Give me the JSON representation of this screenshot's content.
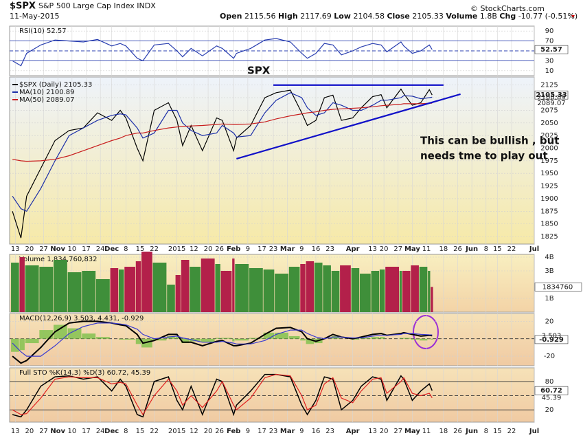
{
  "header": {
    "symbol": "$SPX",
    "name": "S&P 500 Large Cap Index INDX",
    "date": "11-May-2015",
    "source": "© StockCharts.com",
    "stats": [
      {
        "label": "Open",
        "value": "2115.56"
      },
      {
        "label": "High",
        "value": "2117.69"
      },
      {
        "label": "Low",
        "value": "2104.58"
      },
      {
        "label": "Close",
        "value": "2105.33"
      },
      {
        "label": "Volume",
        "value": "1.8B"
      },
      {
        "label": "Chg",
        "value": "-10.77 (-0.51%)"
      }
    ]
  },
  "chart_data": [
    {
      "type": "line",
      "title": "RSI(10) 52.57",
      "ylim": [
        0,
        100
      ],
      "yticks": [
        90,
        70,
        50,
        30,
        10
      ],
      "levels": [
        70,
        50,
        30
      ],
      "grid": true,
      "series": [
        {
          "color": "#2a3fb0",
          "last_label": true,
          "values": [
            30,
            20,
            45,
            62,
            72,
            70,
            68,
            73,
            60,
            65,
            60,
            35,
            30,
            62,
            65,
            50,
            38,
            55,
            40,
            60,
            55,
            35,
            45,
            55,
            72,
            75,
            68,
            45,
            35,
            45,
            65,
            62,
            42,
            50,
            58,
            65,
            62,
            48,
            68,
            60,
            45,
            50,
            62,
            52.57
          ]
        }
      ]
    },
    {
      "type": "line",
      "xlim": [
        -1,
        184
      ],
      "x": [
        0,
        3,
        5,
        10,
        15,
        20,
        25,
        30,
        35,
        38,
        40,
        44,
        46,
        50,
        55,
        58,
        60,
        63,
        67,
        72,
        74,
        78,
        79,
        84,
        89,
        93,
        98,
        102,
        104,
        107,
        110,
        113,
        116,
        120,
        123,
        127,
        130,
        132,
        137,
        138,
        141,
        144,
        147,
        148
      ],
      "xticks": [
        {
          "value": 1,
          "label": "13"
        },
        {
          "value": 6,
          "label": "20"
        },
        {
          "value": 11,
          "label": "27"
        },
        {
          "value": 16,
          "label": "Nov"
        },
        {
          "value": 21,
          "label": "10"
        },
        {
          "value": 26,
          "label": "17"
        },
        {
          "value": 31,
          "label": "24"
        },
        {
          "value": 35,
          "label": "Dec"
        },
        {
          "value": 40,
          "label": "8"
        },
        {
          "value": 45,
          "label": "15"
        },
        {
          "value": 50,
          "label": "22"
        },
        {
          "value": 58,
          "label": "2015"
        },
        {
          "value": 64,
          "label": "12"
        },
        {
          "value": 69,
          "label": "20"
        },
        {
          "value": 73,
          "label": "26"
        },
        {
          "value": 78,
          "label": "Feb"
        },
        {
          "value": 83,
          "label": "9"
        },
        {
          "value": 88,
          "label": "17"
        },
        {
          "value": 92,
          "label": "23"
        },
        {
          "value": 97,
          "label": "Mar"
        },
        {
          "value": 102,
          "label": "9"
        },
        {
          "value": 107,
          "label": "16"
        },
        {
          "value": 112,
          "label": "23"
        },
        {
          "value": 120,
          "label": "Apr"
        },
        {
          "value": 127,
          "label": "13"
        },
        {
          "value": 131,
          "label": "20"
        },
        {
          "value": 136,
          "label": "27"
        },
        {
          "value": 141,
          "label": "May"
        },
        {
          "value": 146,
          "label": "11"
        },
        {
          "value": 152,
          "label": "18"
        },
        {
          "value": 157,
          "label": "26"
        },
        {
          "value": 162,
          "label": "Jun"
        },
        {
          "value": 167,
          "label": "8"
        },
        {
          "value": 171,
          "label": "15"
        },
        {
          "value": 176,
          "label": "22"
        },
        {
          "value": 184,
          "label": "Jul"
        }
      ],
      "ylim": [
        1810,
        2141
      ],
      "yticks": [
        2125,
        2100,
        2075,
        2050,
        2025,
        2000,
        1975,
        1950,
        1925,
        1900,
        1875,
        1850,
        1825
      ],
      "grid": true,
      "series": [
        {
          "name": "$SPX (Daily) 2105.33",
          "color": "#000000",
          "last_label": true,
          "values": [
            1875,
            1822,
            1905,
            1960,
            2015,
            2035,
            2040,
            2070,
            2055,
            2075,
            2060,
            2000,
            1975,
            2075,
            2090,
            2055,
            2005,
            2045,
            1995,
            2060,
            2055,
            1995,
            2020,
            2045,
            2100,
            2110,
            2115,
            2070,
            2045,
            2055,
            2100,
            2105,
            2055,
            2060,
            2080,
            2102,
            2106,
            2080,
            2117,
            2108,
            2085,
            2090,
            2116,
            2105.33
          ]
        },
        {
          "name": "MA(10) 2100.89",
          "color": "#1c2fa8",
          "last_label": true,
          "values": [
            1905,
            1880,
            1875,
            1920,
            1975,
            2025,
            2040,
            2055,
            2065,
            2068,
            2066,
            2040,
            2020,
            2030,
            2075,
            2075,
            2050,
            2035,
            2025,
            2030,
            2045,
            2030,
            2022,
            2025,
            2070,
            2095,
            2110,
            2100,
            2080,
            2065,
            2070,
            2090,
            2085,
            2075,
            2075,
            2085,
            2095,
            2095,
            2100,
            2104,
            2103,
            2098,
            2100,
            2100.89
          ]
        },
        {
          "name": "MA(50) 2089.07",
          "color": "#c81e1e",
          "last_label": true,
          "values": [
            1978,
            1975,
            1974,
            1975,
            1978,
            1985,
            1995,
            2005,
            2015,
            2020,
            2025,
            2030,
            2030,
            2035,
            2040,
            2042,
            2043,
            2044,
            2045,
            2047,
            2048,
            2047,
            2047,
            2048,
            2052,
            2058,
            2064,
            2068,
            2070,
            2072,
            2075,
            2077,
            2078,
            2079,
            2080,
            2082,
            2084,
            2085,
            2087,
            2088,
            2088,
            2088,
            2089,
            2089.07
          ]
        }
      ],
      "trendline_color": "#1010c8",
      "trendlines": [
        {
          "x": [
            92,
            152
          ],
          "values": [
            2125,
            2125
          ]
        },
        {
          "x": [
            79,
            158
          ],
          "values": [
            1979,
            2107
          ]
        }
      ],
      "annotations": [
        {
          "text": "SPX",
          "color": "#f07010"
        },
        {
          "text": "This can be bullish , but",
          "color": "#9b2fd6"
        },
        {
          "text": "needs tme to play out",
          "color": "#9b2fd6"
        }
      ]
    },
    {
      "type": "bar",
      "title": "Volume 1,834,760,832",
      "ylim": [
        0,
        4200000000
      ],
      "yticks": [
        {
          "value": 4000000000,
          "label": "4B"
        },
        {
          "value": 3000000000,
          "label": "3B"
        },
        {
          "value": 1000000000,
          "label": "1B"
        }
      ],
      "grid": true,
      "last_label": "1834760",
      "up_color": "#3f8f3a",
      "down_color": "#b3204a",
      "series": [
        {
          "values": [
            3600000000,
            4000000000,
            3400000000,
            3300000000,
            3800000000,
            2900000000,
            3000000000,
            2400000000,
            3200000000,
            3100000000,
            3300000000,
            3700000000,
            4400000000,
            3600000000,
            2000000000,
            2700000000,
            3800000000,
            3300000000,
            3900000000,
            3500000000,
            3000000000,
            3900000000,
            3500000000,
            3200000000,
            3100000000,
            2800000000,
            3300000000,
            3500000000,
            3700000000,
            3600000000,
            3400000000,
            3000000000,
            3400000000,
            3200000000,
            2800000000,
            3000000000,
            3100000000,
            3300000000,
            3000000000,
            3000000000,
            3400000000,
            3300000000,
            3000000000,
            1834760832
          ]
        }
      ]
    },
    {
      "type": "line",
      "title": "MACD(12,26,9) 3.503, 4.431, -0.929",
      "ylim": [
        -31,
        29
      ],
      "yticks": [
        20,
        -20
      ],
      "levels": [
        0
      ],
      "grid": true,
      "series": [
        {
          "color": "#7cc04a",
          "style": "bar",
          "last_label": true,
          "values": [
            -15,
            -13,
            -5,
            10,
            16,
            12,
            6,
            2,
            0,
            -1,
            -1,
            -6,
            -10,
            -2,
            3,
            2,
            -5,
            -3,
            -4,
            1,
            1,
            -3,
            -2,
            1,
            7,
            7,
            3,
            -2,
            -6,
            -5,
            0,
            3,
            0,
            -1,
            1,
            2,
            2,
            0,
            1,
            1,
            -1,
            -2,
            -0.5,
            -0.929
          ]
        },
        {
          "color": "#000000",
          "width": 2,
          "last_label": true,
          "values": [
            -20,
            -28,
            -25,
            -10,
            8,
            18,
            20,
            20,
            18,
            16,
            15,
            5,
            -5,
            -2,
            5,
            5,
            -4,
            -4,
            -8,
            -3,
            -2,
            -8,
            -8,
            -5,
            5,
            12,
            13,
            8,
            0,
            -3,
            0,
            5,
            2,
            0,
            2,
            5,
            6,
            4,
            6,
            7,
            5,
            3,
            4,
            3.503
          ]
        },
        {
          "color": "#3a3ad0",
          "values": [
            -5,
            -15,
            -20,
            -20,
            -8,
            6,
            14,
            18,
            18,
            17,
            16,
            11,
            5,
            0,
            2,
            3,
            1,
            -1,
            -4,
            -4,
            -3,
            -5,
            -6,
            -6,
            -2,
            5,
            10,
            10,
            6,
            2,
            0,
            2,
            2,
            1,
            1,
            3,
            4,
            4,
            5,
            6,
            6,
            5,
            4.5,
            4.431
          ]
        }
      ]
    },
    {
      "type": "line",
      "title": "Full STO %K(14,3) %D(3) 60.72, 45.39",
      "ylim": [
        -6,
        109
      ],
      "yticks": [
        80,
        20
      ],
      "levels": [
        80,
        50,
        20
      ],
      "grid": true,
      "series": [
        {
          "color": "#000000",
          "width": 1.5,
          "last_label": true,
          "values": [
            10,
            5,
            20,
            70,
            90,
            92,
            85,
            90,
            60,
            85,
            70,
            10,
            5,
            80,
            90,
            40,
            20,
            70,
            10,
            85,
            80,
            10,
            30,
            60,
            95,
            95,
            90,
            30,
            10,
            40,
            90,
            85,
            20,
            40,
            70,
            90,
            85,
            40,
            92,
            85,
            40,
            60,
            75,
            60.72
          ]
        },
        {
          "color": "#e02020",
          "last_label": true,
          "values": [
            20,
            10,
            12,
            45,
            85,
            90,
            88,
            88,
            75,
            78,
            75,
            30,
            10,
            50,
            85,
            60,
            30,
            50,
            25,
            60,
            80,
            30,
            20,
            45,
            88,
            95,
            92,
            50,
            20,
            30,
            75,
            88,
            45,
            35,
            60,
            85,
            88,
            55,
            80,
            88,
            55,
            50,
            55,
            45.39
          ]
        }
      ]
    }
  ]
}
